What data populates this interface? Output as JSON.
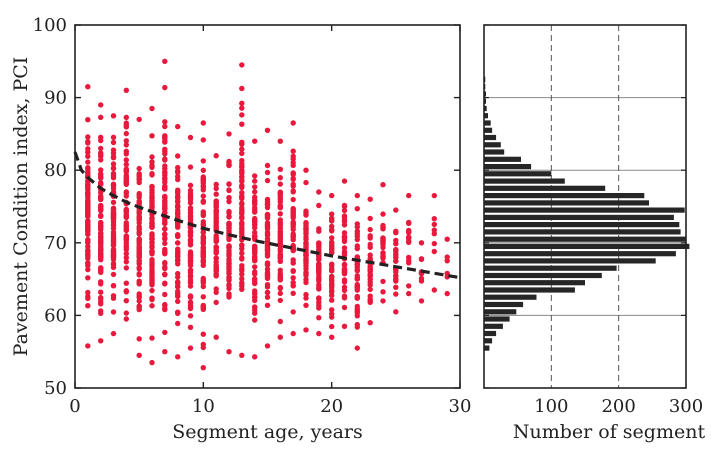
{
  "chart_data": [
    {
      "type": "scatter",
      "title": "",
      "xlabel": "Segment age, years",
      "ylabel": "Pavement Condition index, PCI",
      "xlim": [
        0,
        30
      ],
      "ylim": [
        50,
        100
      ],
      "x_ticks": [
        0,
        10,
        20,
        30
      ],
      "y_ticks": [
        50,
        60,
        70,
        80,
        90,
        100
      ],
      "point_color": "#e8193c",
      "trend_color": "#222222",
      "trend_style": "dashed",
      "grid": false,
      "columns": [
        {
          "age": 1,
          "min": 55.8,
          "max": 91.5,
          "n": 90
        },
        {
          "age": 2,
          "min": 56.5,
          "max": 89.0,
          "n": 85
        },
        {
          "age": 3,
          "min": 57.5,
          "max": 87.5,
          "n": 80
        },
        {
          "age": 4,
          "min": 59.5,
          "max": 91.0,
          "n": 65
        },
        {
          "age": 5,
          "min": 54.5,
          "max": 87.0,
          "n": 75
        },
        {
          "age": 6,
          "min": 53.5,
          "max": 88.5,
          "n": 80
        },
        {
          "age": 7,
          "min": 55.0,
          "max": 95.0,
          "n": 80
        },
        {
          "age": 8,
          "min": 54.3,
          "max": 86.0,
          "n": 70
        },
        {
          "age": 9,
          "min": 55.5,
          "max": 84.5,
          "n": 70
        },
        {
          "age": 10,
          "min": 52.8,
          "max": 86.5,
          "n": 70
        },
        {
          "age": 11,
          "min": 57.0,
          "max": 82.0,
          "n": 65
        },
        {
          "age": 12,
          "min": 55.0,
          "max": 85.0,
          "n": 65
        },
        {
          "age": 13,
          "min": 54.5,
          "max": 94.5,
          "n": 65
        },
        {
          "age": 14,
          "min": 54.3,
          "max": 84.0,
          "n": 60
        },
        {
          "age": 15,
          "min": 55.8,
          "max": 85.5,
          "n": 60
        },
        {
          "age": 16,
          "min": 57.0,
          "max": 84.0,
          "n": 55
        },
        {
          "age": 17,
          "min": 57.5,
          "max": 86.5,
          "n": 55
        },
        {
          "age": 18,
          "min": 58.0,
          "max": 80.0,
          "n": 50
        },
        {
          "age": 19,
          "min": 57.5,
          "max": 77.0,
          "n": 45
        },
        {
          "age": 20,
          "min": 57.0,
          "max": 76.5,
          "n": 45
        },
        {
          "age": 21,
          "min": 58.5,
          "max": 78.5,
          "n": 40
        },
        {
          "age": 22,
          "min": 55.5,
          "max": 76.5,
          "n": 45
        },
        {
          "age": 23,
          "min": 59.0,
          "max": 76.0,
          "n": 30
        },
        {
          "age": 24,
          "min": 62.0,
          "max": 78.0,
          "n": 25
        },
        {
          "age": 25,
          "min": 60.5,
          "max": 74.5,
          "n": 25
        },
        {
          "age": 26,
          "min": 63.0,
          "max": 76.5,
          "n": 15
        },
        {
          "age": 27,
          "min": 62.0,
          "max": 70.0,
          "n": 8
        },
        {
          "age": 28,
          "min": 63.5,
          "max": 76.5,
          "n": 6
        },
        {
          "age": 29,
          "min": 63.0,
          "max": 70.5,
          "n": 4
        }
      ],
      "trend": {
        "x": [
          0,
          0.5,
          1,
          2,
          3,
          4,
          5,
          6,
          8,
          10,
          12,
          14,
          16,
          18,
          20,
          22,
          24,
          26,
          28,
          30
        ],
        "y": [
          82.5,
          80.0,
          79.0,
          77.5,
          76.5,
          75.6,
          74.9,
          74.3,
          73.1,
          72.0,
          71.1,
          70.3,
          69.6,
          68.9,
          68.2,
          67.6,
          67.0,
          66.4,
          65.8,
          65.2
        ]
      }
    },
    {
      "type": "bar",
      "orientation": "horizontal",
      "title": "",
      "xlabel": "Number of segment",
      "ylabel": "",
      "xlim": [
        0,
        300
      ],
      "ylim": [
        50,
        100
      ],
      "x_ticks": [
        100,
        200,
        300
      ],
      "x_tick_labels": [
        "100",
        "200",
        "300"
      ],
      "bar_color": "#262626",
      "grid_vertical": "dashed",
      "grid_horizontal": "solid",
      "bin_width": 1,
      "bin_starts": [
        55,
        56,
        57,
        58,
        59,
        60,
        61,
        62,
        63,
        64,
        65,
        66,
        67,
        68,
        69,
        70,
        71,
        72,
        73,
        74,
        75,
        76,
        77,
        78,
        79,
        80,
        81,
        82,
        83,
        84,
        85,
        86,
        87,
        88,
        89,
        90,
        91,
        92
      ],
      "counts": [
        8,
        12,
        18,
        28,
        38,
        48,
        58,
        78,
        135,
        150,
        175,
        197,
        255,
        285,
        305,
        300,
        292,
        290,
        282,
        298,
        245,
        238,
        180,
        120,
        100,
        70,
        55,
        30,
        25,
        18,
        12,
        10,
        6,
        4,
        3,
        3,
        2,
        2
      ]
    }
  ]
}
